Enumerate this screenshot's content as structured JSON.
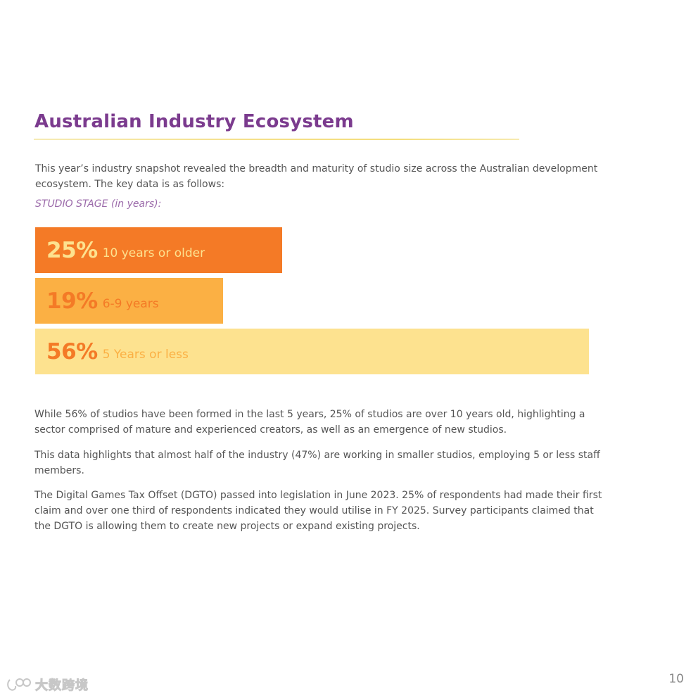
{
  "title": "Australian Industry Ecosystem",
  "intro": "This year’s industry snapshot revealed the breadth and maturity of studio size across the Australian development ecosystem.  The key data is as follows:",
  "chart_caption": "STUDIO STAGE (in years):",
  "chart_data": {
    "type": "bar",
    "orientation": "horizontal",
    "title": "STUDIO STAGE (in years):",
    "categories": [
      "10 years or older",
      "6-9 years",
      "5 Years or less"
    ],
    "values": [
      25,
      19,
      56
    ],
    "value_labels": [
      "25%",
      "19%",
      "56%"
    ],
    "unit": "%",
    "colors": [
      "#f47a26",
      "#fbb044",
      "#fde28f"
    ],
    "value_colors": [
      "#fde28f",
      "#f47a26",
      "#f47a26"
    ],
    "label_colors": [
      "#fde28f",
      "#f47a26",
      "#fbb044"
    ],
    "xlim": [
      0,
      56
    ]
  },
  "paragraphs": [
    "While 56% of studios have been formed in the last 5 years, 25% of studios are over 10 years old, highlighting a sector comprised of mature and experienced creators, as well as an emergence of new studios.",
    "This data highlights that almost half of the industry (47%) are working in smaller studios, employing 5 or less staff members.",
    "The Digital Games Tax Offset (DGTO) passed into legislation in June 2023. 25% of respondents had made their first claim and over one third of respondents indicated they would utilise in FY 2025. Survey participants claimed that the DGTO is allowing them to create new projects or expand existing projects."
  ],
  "page_number": "10",
  "watermark": {
    "text": "大数跨境",
    "icon": "brand-logo-icon"
  }
}
